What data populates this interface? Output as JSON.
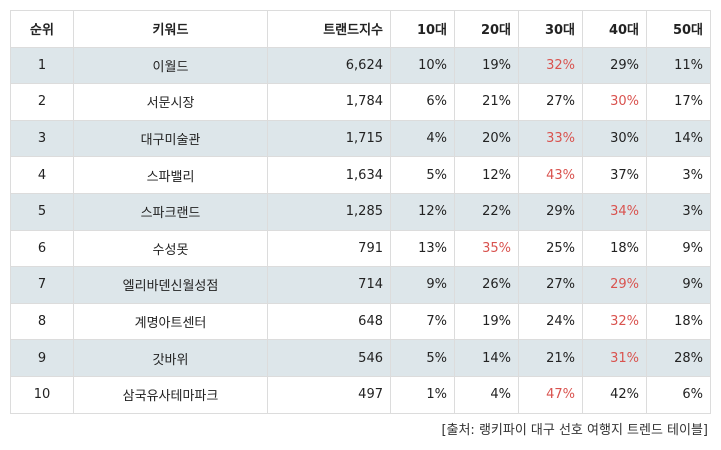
{
  "columns": [
    "순위",
    "키워드",
    "트랜드지수",
    "10대",
    "20대",
    "30대",
    "40대",
    "50대"
  ],
  "rows": [
    {
      "rank": "1",
      "keyword": "이월드",
      "index": "6,624",
      "ages": [
        "10%",
        "19%",
        "32%",
        "29%",
        "11%"
      ],
      "highlight": 2
    },
    {
      "rank": "2",
      "keyword": "서문시장",
      "index": "1,784",
      "ages": [
        "6%",
        "21%",
        "27%",
        "30%",
        "17%"
      ],
      "highlight": 3
    },
    {
      "rank": "3",
      "keyword": "대구미술관",
      "index": "1,715",
      "ages": [
        "4%",
        "20%",
        "33%",
        "30%",
        "14%"
      ],
      "highlight": 2
    },
    {
      "rank": "4",
      "keyword": "스파밸리",
      "index": "1,634",
      "ages": [
        "5%",
        "12%",
        "43%",
        "37%",
        "3%"
      ],
      "highlight": 2
    },
    {
      "rank": "5",
      "keyword": "스파크랜드",
      "index": "1,285",
      "ages": [
        "12%",
        "22%",
        "29%",
        "34%",
        "3%"
      ],
      "highlight": 3
    },
    {
      "rank": "6",
      "keyword": "수성못",
      "index": "791",
      "ages": [
        "13%",
        "35%",
        "25%",
        "18%",
        "9%"
      ],
      "highlight": 1
    },
    {
      "rank": "7",
      "keyword": "엘리바덴신월성점",
      "index": "714",
      "ages": [
        "9%",
        "26%",
        "27%",
        "29%",
        "9%"
      ],
      "highlight": 3
    },
    {
      "rank": "8",
      "keyword": "계명아트센터",
      "index": "648",
      "ages": [
        "7%",
        "19%",
        "24%",
        "32%",
        "18%"
      ],
      "highlight": 3
    },
    {
      "rank": "9",
      "keyword": "갓바위",
      "index": "546",
      "ages": [
        "5%",
        "14%",
        "21%",
        "31%",
        "28%"
      ],
      "highlight": 3
    },
    {
      "rank": "10",
      "keyword": "삼국유사테마파크",
      "index": "497",
      "ages": [
        "1%",
        "4%",
        "47%",
        "42%",
        "6%"
      ],
      "highlight": 2
    }
  ],
  "source": "[출처: 랭키파이 대구 선호 여행지 트렌드 테이블]",
  "colors": {
    "highlight": "#d9534f",
    "row_shade": "#dde6ea",
    "border": "#dcdcdc"
  }
}
